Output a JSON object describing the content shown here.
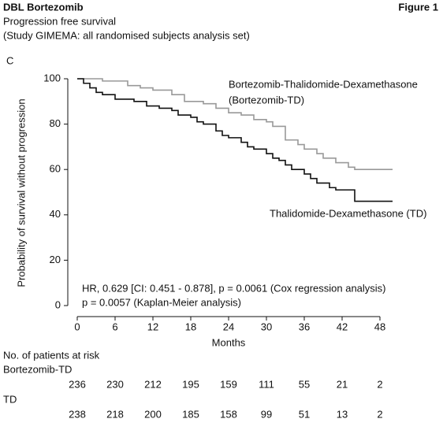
{
  "header": {
    "title": "DBL Bortezomib",
    "figure": "Figure 1",
    "subtitle": "Progression free survival",
    "study": "(Study GIMEMA: all randomised subjects analysis set)"
  },
  "chart_data": {
    "type": "line",
    "step": true,
    "panel": "C",
    "x_label": "Months",
    "y_label": "Probability of survival without progression",
    "xlim": [
      0,
      48
    ],
    "xticks": [
      0,
      6,
      12,
      18,
      24,
      30,
      36,
      42,
      48
    ],
    "ylim": [
      0,
      100
    ],
    "yticks": [
      0,
      20,
      40,
      60,
      80,
      100
    ],
    "series": [
      {
        "name": "Bortezomib-Thalidomide-Dexamethasone",
        "name_line2": "(Bortezomib-TD)",
        "color": "#999999",
        "x": [
          0,
          4,
          8,
          10,
          12,
          15,
          17,
          20,
          22,
          24,
          26,
          28,
          30,
          31,
          33,
          35,
          36,
          38,
          39,
          41,
          43,
          44,
          50
        ],
        "values": [
          100,
          99,
          97,
          96,
          95,
          93,
          90,
          89,
          87,
          85,
          84,
          82,
          81,
          79,
          73,
          71,
          69,
          67,
          65,
          63,
          61,
          60,
          60
        ]
      },
      {
        "name": "Thalidomide-Dexamethasone (TD)",
        "color": "#111111",
        "x": [
          0,
          1,
          2,
          3,
          4,
          6,
          9,
          11,
          13,
          15,
          16,
          18,
          19,
          20,
          22,
          23,
          24,
          26,
          27,
          28,
          30,
          31,
          32,
          33,
          34,
          36,
          37,
          38,
          40,
          41,
          44,
          50
        ],
        "values": [
          100,
          98,
          96,
          94,
          93,
          91,
          90,
          88,
          87,
          86,
          84,
          83,
          81,
          80,
          77,
          75,
          74,
          72,
          70,
          69,
          67,
          65,
          64,
          62,
          60,
          58,
          56,
          54,
          52,
          51,
          46,
          46
        ]
      }
    ],
    "annotations": [
      "HR, 0.629 [CI: 0.451 - 0.878], p = 0.0061 (Cox regression analysis)",
      "p = 0.0057 (Kaplan-Meier analysis)"
    ],
    "risk_table": {
      "title": "No. of patients at risk",
      "rows": [
        {
          "name": "Bortezomib-TD",
          "values": [
            236,
            230,
            212,
            195,
            159,
            111,
            55,
            21,
            2
          ]
        },
        {
          "name": "TD",
          "values": [
            238,
            218,
            200,
            185,
            158,
            99,
            51,
            13,
            2
          ]
        }
      ]
    }
  }
}
